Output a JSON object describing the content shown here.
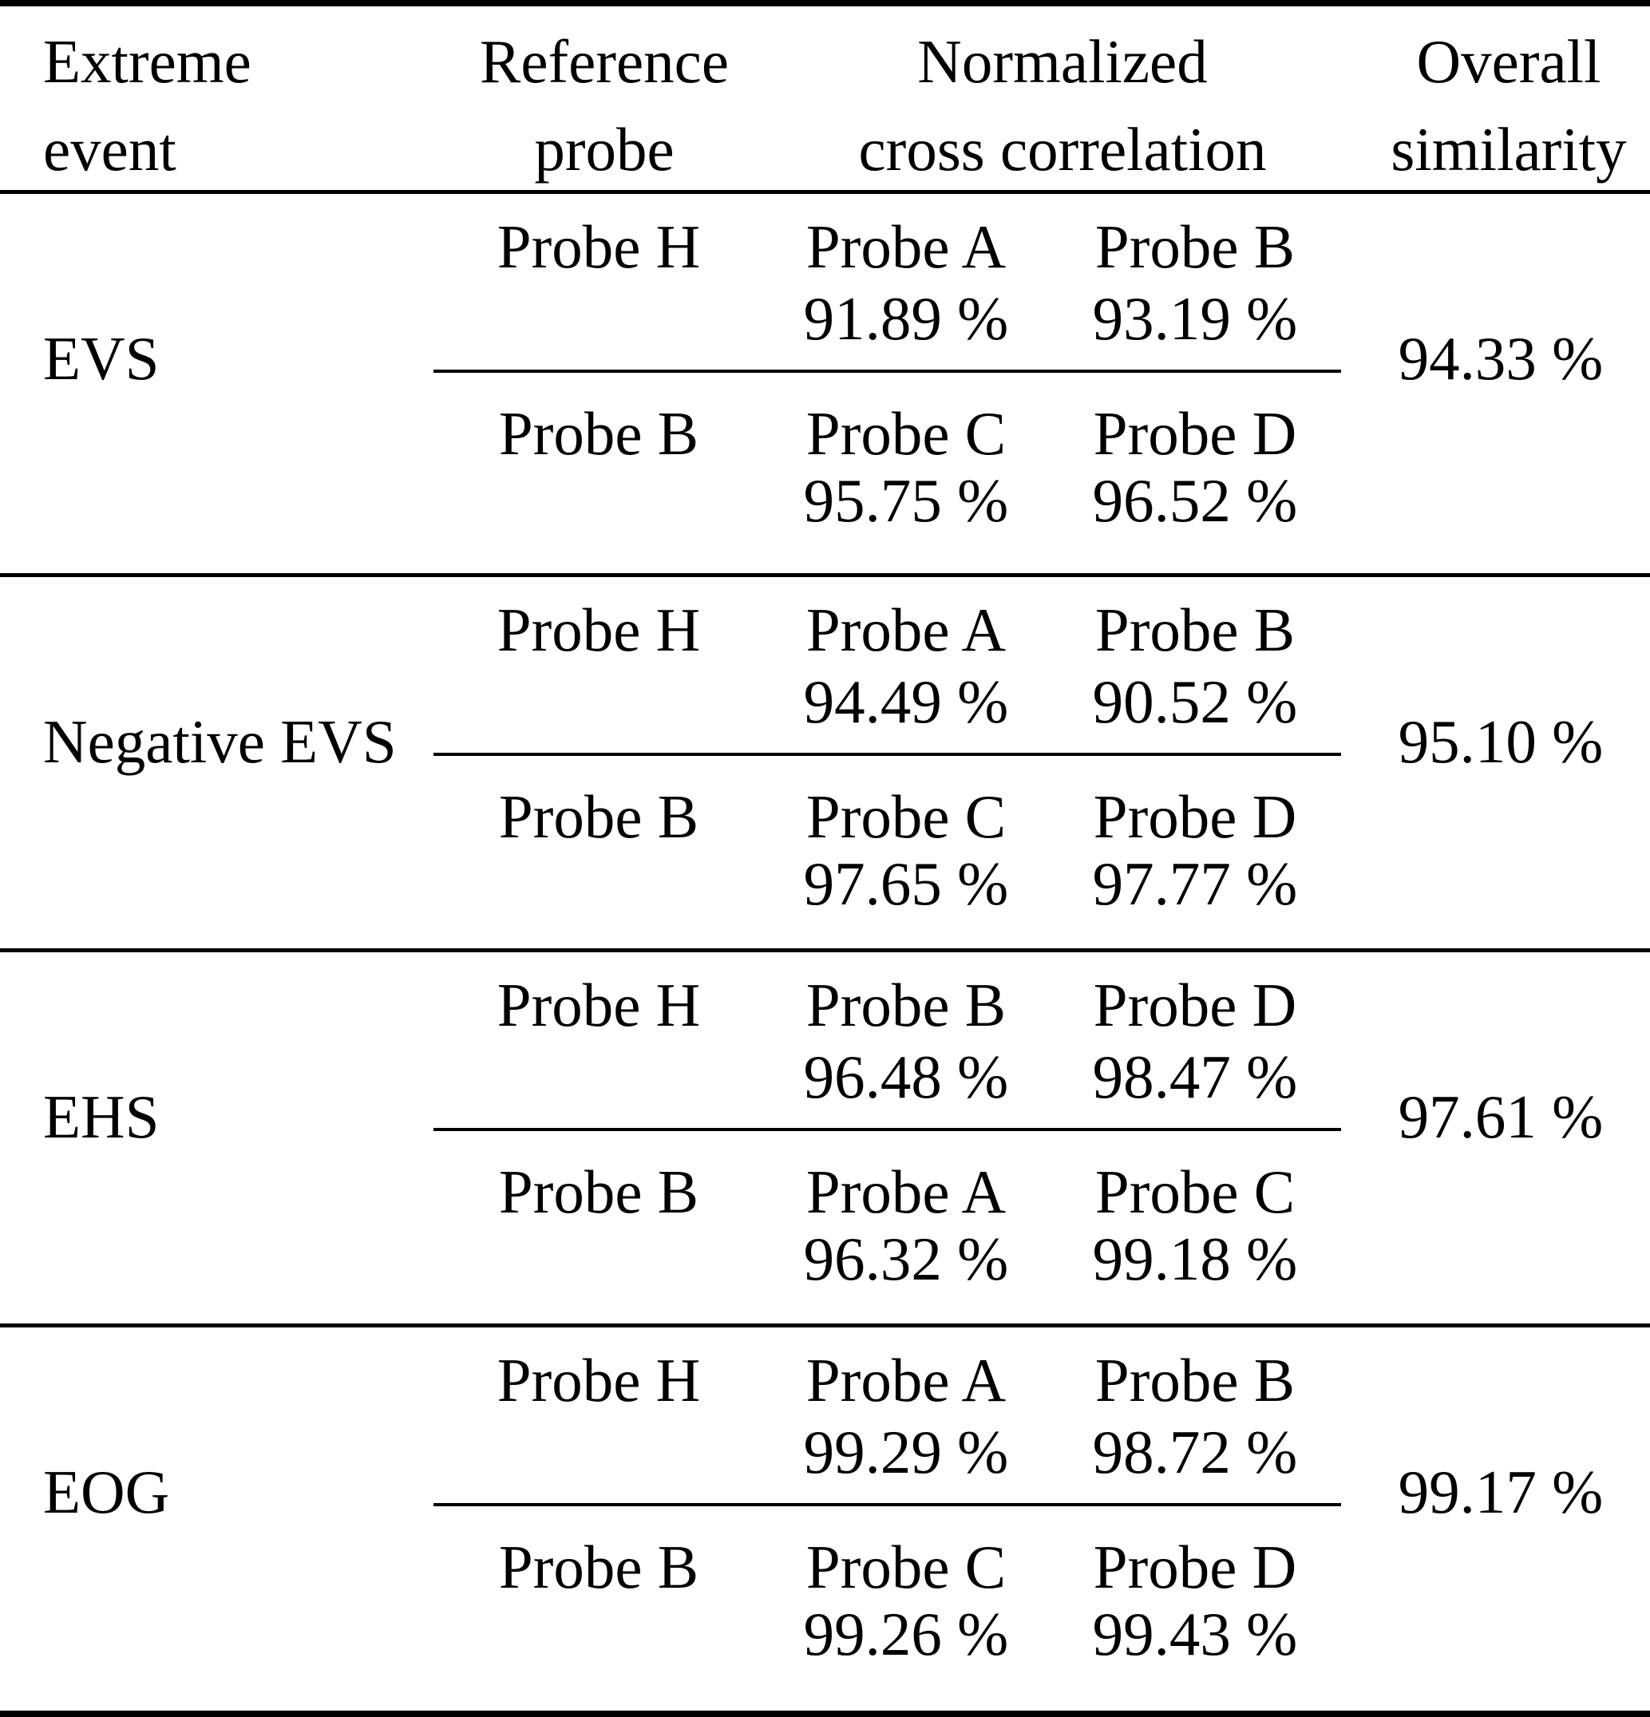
{
  "table": {
    "header": {
      "col1": {
        "line1": "Extreme",
        "line2": "event"
      },
      "col2": {
        "line1": "Reference",
        "line2": "probe"
      },
      "col3": {
        "line1": "Normalized",
        "line2": "cross correlation"
      },
      "col4": {
        "line1": "Overall",
        "line2": "similarity"
      }
    },
    "sections": [
      {
        "event": "EVS",
        "overall": "94.33 %",
        "rows": [
          {
            "reference": "Probe H",
            "probes": [
              {
                "name": "Probe A",
                "value": "91.89 %"
              },
              {
                "name": "Probe B",
                "value": "93.19 %"
              }
            ]
          },
          {
            "reference": "Probe B",
            "probes": [
              {
                "name": "Probe C",
                "value": "95.75 %"
              },
              {
                "name": "Probe D",
                "value": "96.52 %"
              }
            ]
          }
        ]
      },
      {
        "event": "Negative EVS",
        "overall": "95.10 %",
        "rows": [
          {
            "reference": "Probe H",
            "probes": [
              {
                "name": "Probe A",
                "value": "94.49 %"
              },
              {
                "name": "Probe B",
                "value": "90.52 %"
              }
            ]
          },
          {
            "reference": "Probe B",
            "probes": [
              {
                "name": "Probe C",
                "value": "97.65 %"
              },
              {
                "name": "Probe D",
                "value": "97.77 %"
              }
            ]
          }
        ]
      },
      {
        "event": "EHS",
        "overall": "97.61 %",
        "rows": [
          {
            "reference": "Probe H",
            "probes": [
              {
                "name": "Probe B",
                "value": "96.48 %"
              },
              {
                "name": "Probe D",
                "value": "98.47 %"
              }
            ]
          },
          {
            "reference": "Probe B",
            "probes": [
              {
                "name": "Probe A",
                "value": "96.32 %"
              },
              {
                "name": "Probe C",
                "value": "99.18 %"
              }
            ]
          }
        ]
      },
      {
        "event": "EOG",
        "overall": "99.17 %",
        "rows": [
          {
            "reference": "Probe H",
            "probes": [
              {
                "name": "Probe A",
                "value": "99.29 %"
              },
              {
                "name": "Probe B",
                "value": "98.72 %"
              }
            ]
          },
          {
            "reference": "Probe B",
            "probes": [
              {
                "name": "Probe C",
                "value": "99.26 %"
              },
              {
                "name": "Probe D",
                "value": "99.43 %"
              }
            ]
          }
        ]
      }
    ]
  }
}
